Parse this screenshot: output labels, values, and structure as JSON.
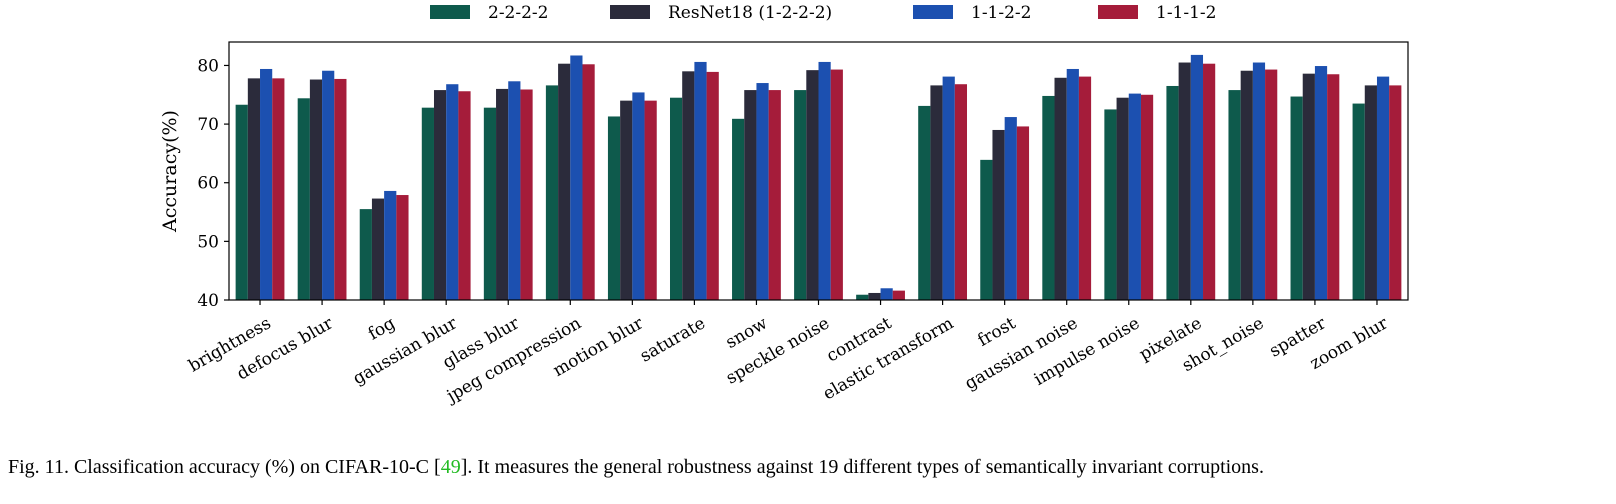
{
  "chart_data": {
    "type": "bar",
    "ylabel": "Accuracy(%)",
    "xlabel": "",
    "ylim": [
      40,
      84
    ],
    "yticks": [
      40,
      50,
      60,
      70,
      80
    ],
    "legend_position": "top-center",
    "categories": [
      "brightness",
      "defocus blur",
      "fog",
      "gaussian blur",
      "glass blur",
      "jpeg compression",
      "motion blur",
      "saturate",
      "snow",
      "speckle noise",
      "contrast",
      "elastic transform",
      "frost",
      "gaussian noise",
      "impulse noise",
      "pixelate",
      "shot_noise",
      "spatter",
      "zoom blur"
    ],
    "series": [
      {
        "name": "2-2-2-2",
        "color": "#0e5a4c",
        "values": [
          73.3,
          74.4,
          55.5,
          72.8,
          72.8,
          76.6,
          71.3,
          74.5,
          70.9,
          75.8,
          40.9,
          73.1,
          63.9,
          74.8,
          72.5,
          76.5,
          75.8,
          74.7,
          73.5
        ]
      },
      {
        "name": "ResNet18 (1-2-2-2)",
        "color": "#2b2b3b",
        "values": [
          77.8,
          77.6,
          57.3,
          75.8,
          76.0,
          80.3,
          74.0,
          79.0,
          75.8,
          79.2,
          41.2,
          76.6,
          69.0,
          77.9,
          74.5,
          80.5,
          79.1,
          78.6,
          76.6
        ]
      },
      {
        "name": "1-1-2-2",
        "color": "#1c50b0",
        "values": [
          79.4,
          79.1,
          58.6,
          76.8,
          77.3,
          81.7,
          75.4,
          80.6,
          77.0,
          80.6,
          42.0,
          78.1,
          71.2,
          79.4,
          75.2,
          81.8,
          80.5,
          79.9,
          78.1
        ]
      },
      {
        "name": "1-1-1-2",
        "color": "#a51c3a",
        "values": [
          77.8,
          77.7,
          57.9,
          75.6,
          75.9,
          80.2,
          74.0,
          78.9,
          75.8,
          79.3,
          41.6,
          76.8,
          69.6,
          78.1,
          75.0,
          80.3,
          79.3,
          78.5,
          76.6
        ]
      }
    ]
  },
  "caption": {
    "prefix": "Fig. 11.   Classification accuracy (%) on CIFAR-10-C [",
    "ref": "49",
    "suffix": "]. It measures the general robustness against 19 different types of semantically invariant corruptions."
  }
}
